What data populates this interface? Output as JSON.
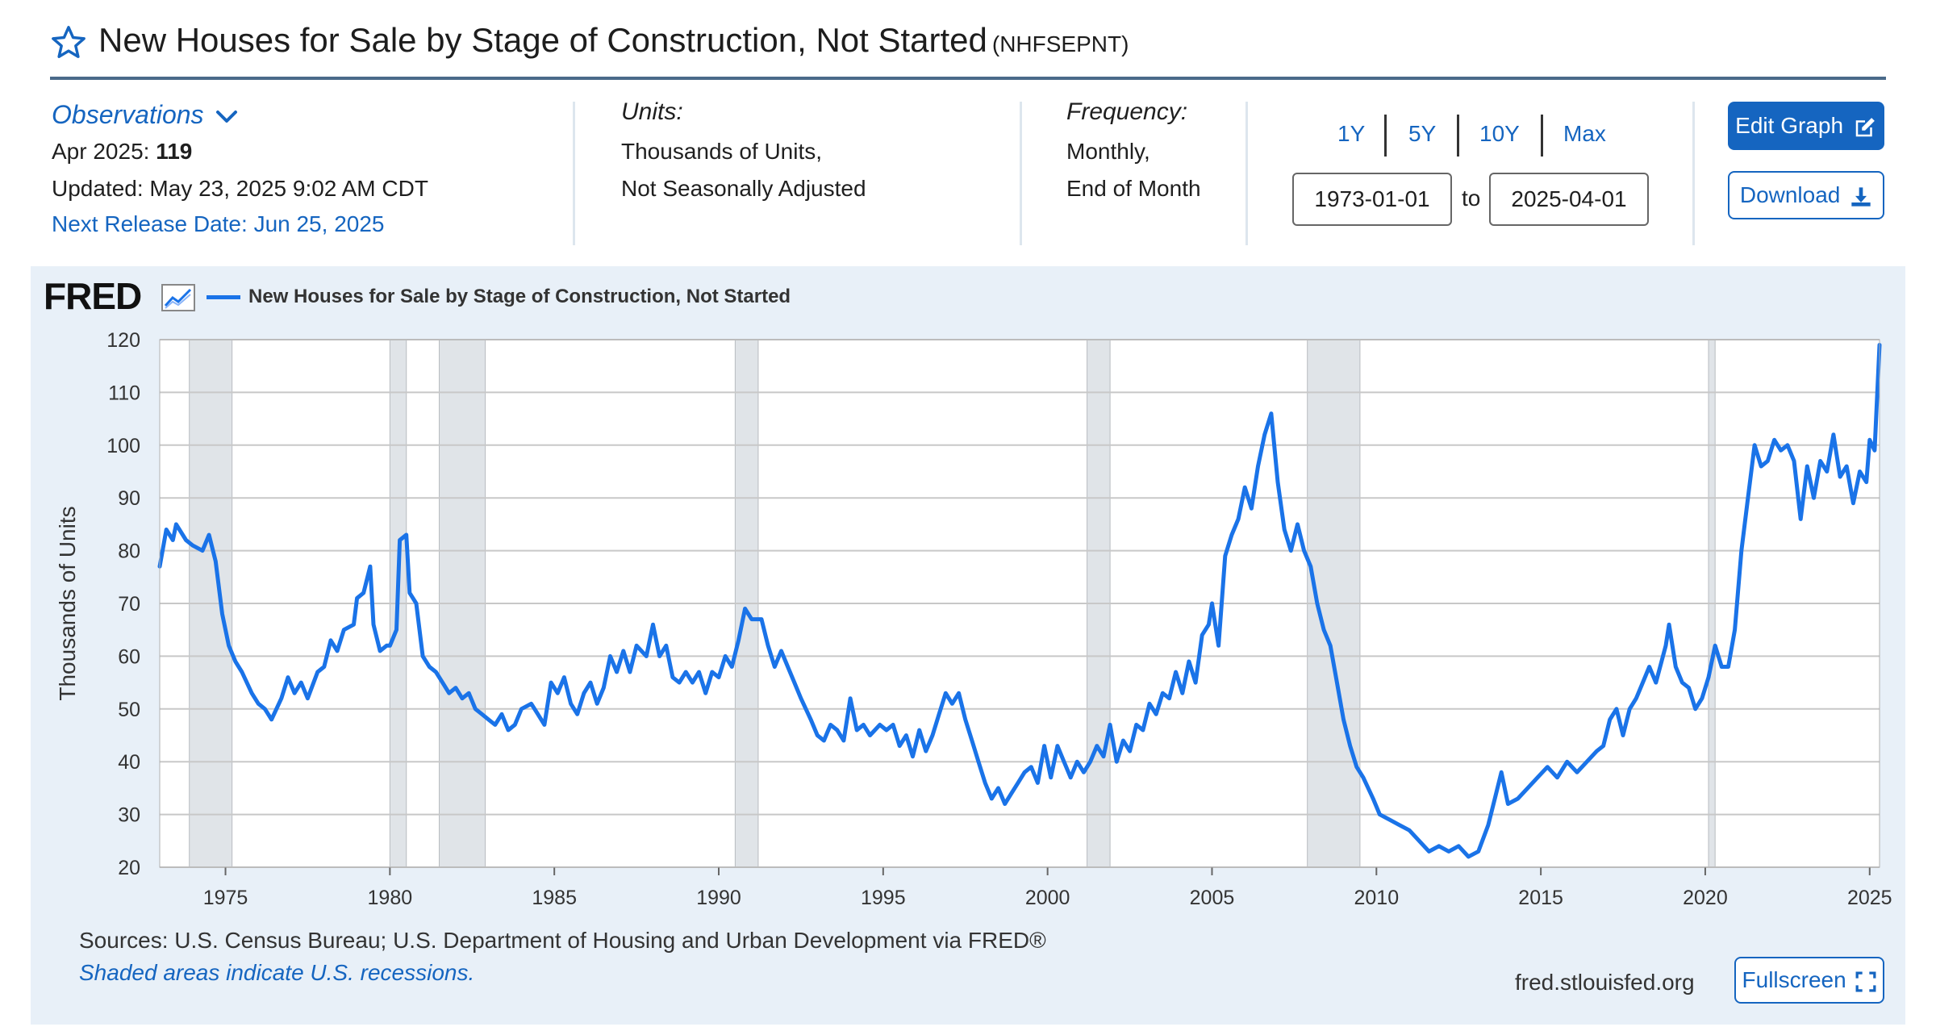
{
  "header": {
    "title": "New Houses for Sale by Stage of Construction, Not Started",
    "series_id": "(NHFSEPNT)"
  },
  "observations": {
    "link_label": "Observations",
    "date": "Apr 2025:",
    "value": "119",
    "updated": "Updated: May 23, 2025 9:02 AM CDT",
    "next_release": "Next Release Date: Jun 25, 2025"
  },
  "units": {
    "label": "Units:",
    "line1": "Thousands of Units,",
    "line2": "Not Seasonally Adjusted"
  },
  "frequency": {
    "label": "Frequency:",
    "line1": "Monthly,",
    "line2": "End of Month"
  },
  "range": {
    "buttons": [
      "1Y",
      "5Y",
      "10Y",
      "Max"
    ],
    "start": "1973-01-01",
    "to_label": "to",
    "end": "2025-04-01"
  },
  "actions": {
    "edit_graph": "Edit Graph",
    "download": "Download",
    "fullscreen": "Fullscreen"
  },
  "branding": {
    "logo": "FRED"
  },
  "footer": {
    "sources": "Sources: U.S. Census Bureau; U.S. Department of Housing and Urban Development via FRED®",
    "shade_note": "Shaded areas indicate U.S. recessions.",
    "site": "fred.stlouisfed.org"
  },
  "colors": {
    "series": "#1a73e8",
    "accent": "#1565c0",
    "panel": "#e8f0f8",
    "recession": "#e0e4e8"
  },
  "chart_data": {
    "type": "line",
    "title": "",
    "legend": "New Houses for Sale by Stage of Construction, Not Started",
    "ylabel": "Thousands of Units",
    "xlabel": "",
    "ylim": [
      20,
      120
    ],
    "xlim": [
      1973.0,
      2025.3
    ],
    "yticks": [
      20,
      30,
      40,
      50,
      60,
      70,
      80,
      90,
      100,
      110,
      120
    ],
    "xticks": [
      1975,
      1980,
      1985,
      1990,
      1995,
      2000,
      2005,
      2010,
      2015,
      2020,
      2025
    ],
    "grid": true,
    "recessions": [
      [
        1973.9,
        1975.2
      ],
      [
        1980.0,
        1980.5
      ],
      [
        1981.5,
        1982.9
      ],
      [
        1990.5,
        1991.2
      ],
      [
        2001.2,
        2001.9
      ],
      [
        2007.9,
        2009.5
      ],
      [
        2020.1,
        2020.3
      ]
    ],
    "series": [
      {
        "name": "New Houses for Sale by Stage of Construction, Not Started",
        "points": [
          [
            1973.0,
            77
          ],
          [
            1973.2,
            84
          ],
          [
            1973.4,
            82
          ],
          [
            1973.5,
            85
          ],
          [
            1973.8,
            82
          ],
          [
            1974.0,
            81
          ],
          [
            1974.3,
            80
          ],
          [
            1974.5,
            83
          ],
          [
            1974.7,
            78
          ],
          [
            1974.9,
            68
          ],
          [
            1975.1,
            62
          ],
          [
            1975.3,
            59
          ],
          [
            1975.5,
            57
          ],
          [
            1975.8,
            53
          ],
          [
            1976.0,
            51
          ],
          [
            1976.2,
            50
          ],
          [
            1976.4,
            48
          ],
          [
            1976.7,
            52
          ],
          [
            1976.9,
            56
          ],
          [
            1977.1,
            53
          ],
          [
            1977.3,
            55
          ],
          [
            1977.5,
            52
          ],
          [
            1977.8,
            57
          ],
          [
            1978.0,
            58
          ],
          [
            1978.2,
            63
          ],
          [
            1978.4,
            61
          ],
          [
            1978.6,
            65
          ],
          [
            1978.9,
            66
          ],
          [
            1979.0,
            71
          ],
          [
            1979.2,
            72
          ],
          [
            1979.4,
            77
          ],
          [
            1979.5,
            66
          ],
          [
            1979.7,
            61
          ],
          [
            1979.9,
            62
          ],
          [
            1980.0,
            62
          ],
          [
            1980.2,
            65
          ],
          [
            1980.3,
            82
          ],
          [
            1980.5,
            83
          ],
          [
            1980.6,
            72
          ],
          [
            1980.8,
            70
          ],
          [
            1981.0,
            60
          ],
          [
            1981.2,
            58
          ],
          [
            1981.4,
            57
          ],
          [
            1981.6,
            55
          ],
          [
            1981.8,
            53
          ],
          [
            1982.0,
            54
          ],
          [
            1982.2,
            52
          ],
          [
            1982.4,
            53
          ],
          [
            1982.6,
            50
          ],
          [
            1982.8,
            49
          ],
          [
            1983.0,
            48
          ],
          [
            1983.2,
            47
          ],
          [
            1983.4,
            49
          ],
          [
            1983.6,
            46
          ],
          [
            1983.8,
            47
          ],
          [
            1984.0,
            50
          ],
          [
            1984.3,
            51
          ],
          [
            1984.5,
            49
          ],
          [
            1984.7,
            47
          ],
          [
            1984.9,
            55
          ],
          [
            1985.1,
            53
          ],
          [
            1985.3,
            56
          ],
          [
            1985.5,
            51
          ],
          [
            1985.7,
            49
          ],
          [
            1985.9,
            53
          ],
          [
            1986.1,
            55
          ],
          [
            1986.3,
            51
          ],
          [
            1986.5,
            54
          ],
          [
            1986.7,
            60
          ],
          [
            1986.9,
            57
          ],
          [
            1987.1,
            61
          ],
          [
            1987.3,
            57
          ],
          [
            1987.5,
            62
          ],
          [
            1987.8,
            60
          ],
          [
            1988.0,
            66
          ],
          [
            1988.2,
            60
          ],
          [
            1988.4,
            62
          ],
          [
            1988.6,
            56
          ],
          [
            1988.8,
            55
          ],
          [
            1989.0,
            57
          ],
          [
            1989.2,
            55
          ],
          [
            1989.4,
            57
          ],
          [
            1989.6,
            53
          ],
          [
            1989.8,
            57
          ],
          [
            1990.0,
            56
          ],
          [
            1990.2,
            60
          ],
          [
            1990.4,
            58
          ],
          [
            1990.6,
            63
          ],
          [
            1990.8,
            69
          ],
          [
            1991.0,
            67
          ],
          [
            1991.3,
            67
          ],
          [
            1991.5,
            62
          ],
          [
            1991.7,
            58
          ],
          [
            1991.9,
            61
          ],
          [
            1992.1,
            58
          ],
          [
            1992.3,
            55
          ],
          [
            1992.5,
            52
          ],
          [
            1992.8,
            48
          ],
          [
            1993.0,
            45
          ],
          [
            1993.2,
            44
          ],
          [
            1993.4,
            47
          ],
          [
            1993.6,
            46
          ],
          [
            1993.8,
            44
          ],
          [
            1994.0,
            52
          ],
          [
            1994.2,
            46
          ],
          [
            1994.4,
            47
          ],
          [
            1994.6,
            45
          ],
          [
            1994.9,
            47
          ],
          [
            1995.1,
            46
          ],
          [
            1995.3,
            47
          ],
          [
            1995.5,
            43
          ],
          [
            1995.7,
            45
          ],
          [
            1995.9,
            41
          ],
          [
            1996.1,
            46
          ],
          [
            1996.3,
            42
          ],
          [
            1996.5,
            45
          ],
          [
            1996.7,
            49
          ],
          [
            1996.9,
            53
          ],
          [
            1997.1,
            51
          ],
          [
            1997.3,
            53
          ],
          [
            1997.5,
            48
          ],
          [
            1997.7,
            44
          ],
          [
            1997.9,
            40
          ],
          [
            1998.1,
            36
          ],
          [
            1998.3,
            33
          ],
          [
            1998.5,
            35
          ],
          [
            1998.7,
            32
          ],
          [
            1998.9,
            34
          ],
          [
            1999.1,
            36
          ],
          [
            1999.3,
            38
          ],
          [
            1999.5,
            39
          ],
          [
            1999.7,
            36
          ],
          [
            1999.9,
            43
          ],
          [
            2000.1,
            37
          ],
          [
            2000.3,
            43
          ],
          [
            2000.5,
            40
          ],
          [
            2000.7,
            37
          ],
          [
            2000.9,
            40
          ],
          [
            2001.1,
            38
          ],
          [
            2001.3,
            40
          ],
          [
            2001.5,
            43
          ],
          [
            2001.7,
            41
          ],
          [
            2001.9,
            47
          ],
          [
            2002.1,
            40
          ],
          [
            2002.3,
            44
          ],
          [
            2002.5,
            42
          ],
          [
            2002.7,
            47
          ],
          [
            2002.9,
            46
          ],
          [
            2003.1,
            51
          ],
          [
            2003.3,
            49
          ],
          [
            2003.5,
            53
          ],
          [
            2003.7,
            52
          ],
          [
            2003.9,
            57
          ],
          [
            2004.1,
            53
          ],
          [
            2004.3,
            59
          ],
          [
            2004.5,
            55
          ],
          [
            2004.7,
            64
          ],
          [
            2004.9,
            66
          ],
          [
            2005.0,
            70
          ],
          [
            2005.2,
            62
          ],
          [
            2005.4,
            79
          ],
          [
            2005.6,
            83
          ],
          [
            2005.8,
            86
          ],
          [
            2006.0,
            92
          ],
          [
            2006.2,
            88
          ],
          [
            2006.4,
            96
          ],
          [
            2006.6,
            102
          ],
          [
            2006.8,
            106
          ],
          [
            2007.0,
            93
          ],
          [
            2007.2,
            84
          ],
          [
            2007.4,
            80
          ],
          [
            2007.6,
            85
          ],
          [
            2007.8,
            80
          ],
          [
            2008.0,
            77
          ],
          [
            2008.2,
            70
          ],
          [
            2008.4,
            65
          ],
          [
            2008.6,
            62
          ],
          [
            2008.8,
            55
          ],
          [
            2009.0,
            48
          ],
          [
            2009.2,
            43
          ],
          [
            2009.4,
            39
          ],
          [
            2009.6,
            37
          ],
          [
            2009.9,
            33
          ],
          [
            2010.1,
            30
          ],
          [
            2010.4,
            29
          ],
          [
            2010.7,
            28
          ],
          [
            2011.0,
            27
          ],
          [
            2011.3,
            25
          ],
          [
            2011.6,
            23
          ],
          [
            2011.9,
            24
          ],
          [
            2012.2,
            23
          ],
          [
            2012.5,
            24
          ],
          [
            2012.8,
            22
          ],
          [
            2013.1,
            23
          ],
          [
            2013.4,
            28
          ],
          [
            2013.6,
            33
          ],
          [
            2013.8,
            38
          ],
          [
            2014.0,
            32
          ],
          [
            2014.3,
            33
          ],
          [
            2014.6,
            35
          ],
          [
            2014.9,
            37
          ],
          [
            2015.2,
            39
          ],
          [
            2015.5,
            37
          ],
          [
            2015.8,
            40
          ],
          [
            2016.1,
            38
          ],
          [
            2016.4,
            40
          ],
          [
            2016.7,
            42
          ],
          [
            2016.9,
            43
          ],
          [
            2017.1,
            48
          ],
          [
            2017.3,
            50
          ],
          [
            2017.5,
            45
          ],
          [
            2017.7,
            50
          ],
          [
            2017.9,
            52
          ],
          [
            2018.1,
            55
          ],
          [
            2018.3,
            58
          ],
          [
            2018.5,
            55
          ],
          [
            2018.8,
            62
          ],
          [
            2018.9,
            66
          ],
          [
            2019.1,
            58
          ],
          [
            2019.3,
            55
          ],
          [
            2019.5,
            54
          ],
          [
            2019.7,
            50
          ],
          [
            2019.9,
            52
          ],
          [
            2020.1,
            56
          ],
          [
            2020.3,
            62
          ],
          [
            2020.5,
            58
          ],
          [
            2020.7,
            58
          ],
          [
            2020.9,
            65
          ],
          [
            2021.1,
            80
          ],
          [
            2021.3,
            90
          ],
          [
            2021.5,
            100
          ],
          [
            2021.7,
            96
          ],
          [
            2021.9,
            97
          ],
          [
            2022.1,
            101
          ],
          [
            2022.3,
            99
          ],
          [
            2022.5,
            100
          ],
          [
            2022.7,
            97
          ],
          [
            2022.9,
            86
          ],
          [
            2023.1,
            96
          ],
          [
            2023.3,
            90
          ],
          [
            2023.5,
            97
          ],
          [
            2023.7,
            95
          ],
          [
            2023.9,
            102
          ],
          [
            2024.1,
            94
          ],
          [
            2024.3,
            96
          ],
          [
            2024.5,
            89
          ],
          [
            2024.7,
            95
          ],
          [
            2024.9,
            93
          ],
          [
            2025.0,
            101
          ],
          [
            2025.15,
            99
          ],
          [
            2025.3,
            119
          ]
        ]
      }
    ]
  }
}
